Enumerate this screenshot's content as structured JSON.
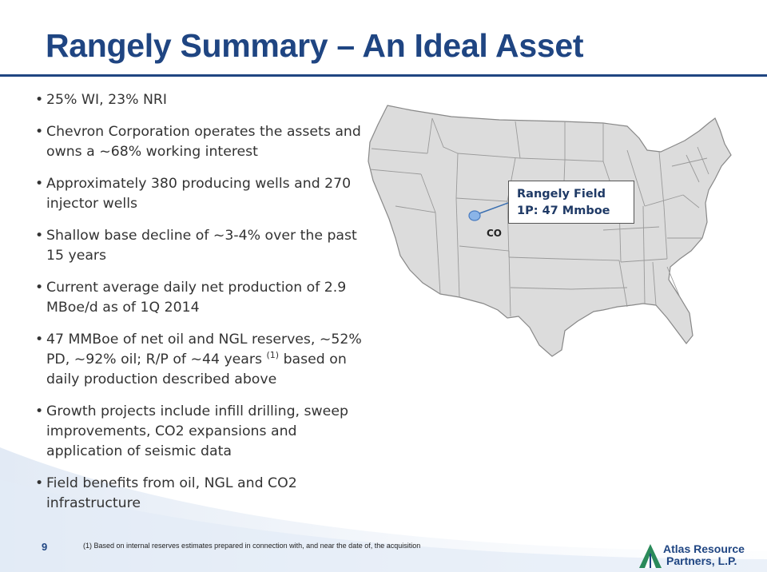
{
  "title": "Rangely Summary – An Ideal Asset",
  "bullets": [
    "25% WI, 23% NRI",
    "Chevron Corporation operates the assets and owns a ~68% working interest",
    "Approximately 380 producing wells and 270 injector wells",
    "Shallow base decline of ~3-4% over the past 15 years",
    "Current average daily net production of 2.9 MBoe/d as of 1Q 2014",
    {
      "before": "47 MMBoe of net oil and NGL reserves, ~52% PD, ~92% oil; R/P of ~44 years ",
      "sup": "(1)",
      "after": " based on daily production described above"
    },
    "Growth projects include infill drilling, sweep improvements, CO2 expansions and application of seismic data",
    "Field benefits from oil, NGL and CO2 infrastructure"
  ],
  "map": {
    "callout_line1": "Rangely Field",
    "callout_line2": "1P: 47 Mmboe",
    "state_label": "CO",
    "marker_color": "#8ab4e8",
    "fill_color": "#dcdcdc",
    "border_color": "#888888"
  },
  "footer": {
    "page_number": "9",
    "footnote": "(1)  Based on internal reserves estimates prepared in connection with, and near the date of, the acquisition",
    "logo_line1": "Atlas Resource",
    "logo_line2": "Partners, L.P."
  },
  "colors": {
    "title": "#1f4582",
    "logo_green": "#2a8a5a"
  }
}
